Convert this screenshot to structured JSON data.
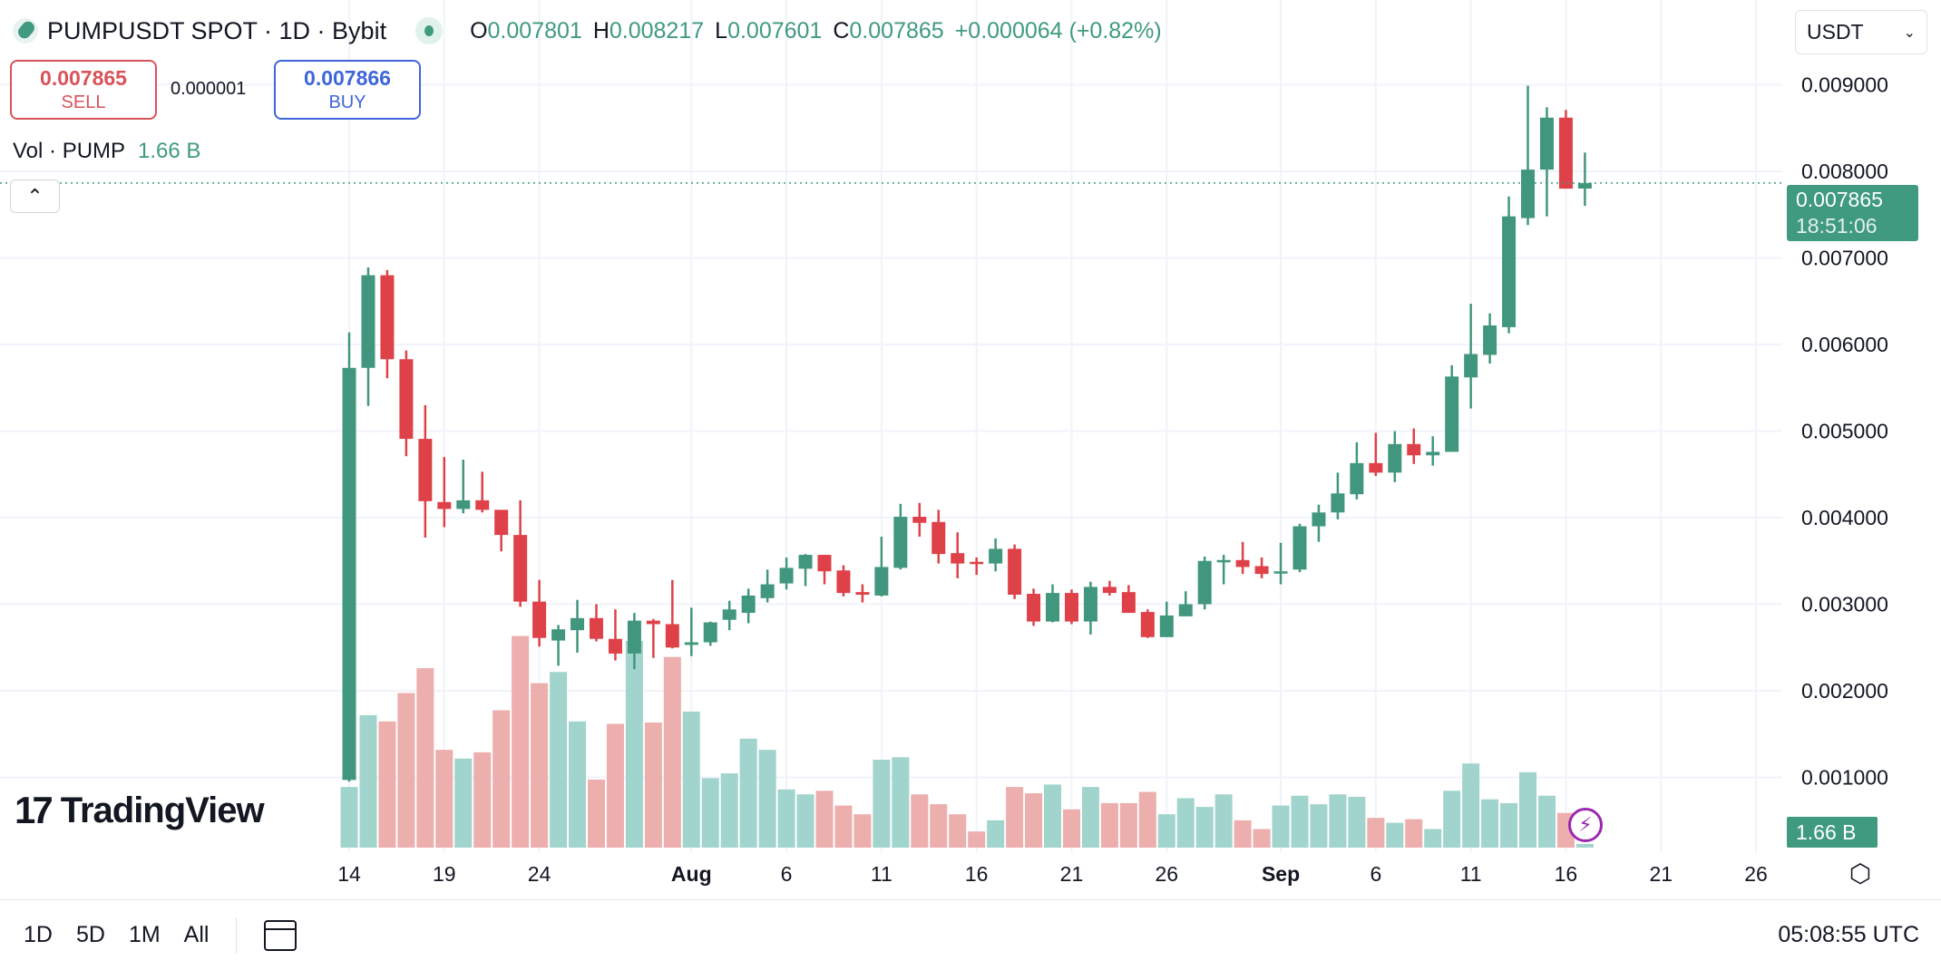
{
  "header": {
    "title": "PUMPUSDT SPOT · 1D · Bybit",
    "ohlc": [
      {
        "k": "O",
        "v": "0.007801"
      },
      {
        "k": "H",
        "v": "0.008217"
      },
      {
        "k": "L",
        "v": "0.007601"
      },
      {
        "k": "C",
        "v": "0.007865"
      }
    ],
    "change": "+0.000064 (+0.82%)"
  },
  "trade": {
    "sell_price": "0.007865",
    "sell_label": "SELL",
    "spread": "0.000001",
    "buy_price": "0.007866",
    "buy_label": "BUY"
  },
  "volume_legend": {
    "label": "Vol · PUMP",
    "value": "1.66 B"
  },
  "currency": "USDT",
  "price_badge": {
    "price": "0.007865",
    "countdown": "18:51:06"
  },
  "volume_badge": "1.66 B",
  "logo": "TradingView",
  "bottom": {
    "ranges": [
      "1D",
      "5D",
      "1M",
      "All"
    ],
    "clock": "05:08:55 UTC"
  },
  "colors": {
    "up": "#41977e",
    "down": "#df4149",
    "vol_up": "#a1d4cc",
    "vol_down": "#edaeae",
    "grid": "#f0f3fa"
  },
  "icons": {
    "symbol": "pump-logo-icon",
    "live": "market-open-dot-icon",
    "collapse": "chevron-up-icon",
    "calendar": "calendar-goto-icon",
    "settings": "settings-gear-icon",
    "alert": "lightning-icon"
  },
  "chart_data": {
    "type": "candlestick",
    "ylim": [
      0,
      0.0095
    ],
    "y_ticks": [
      "0.001000",
      "0.002000",
      "0.003000",
      "0.004000",
      "0.005000",
      "0.006000",
      "0.007000",
      "0.008000",
      "0.009000"
    ],
    "x_ticks": [
      {
        "label": "14",
        "date": "Jul 14"
      },
      {
        "label": "19",
        "date": "Jul 19"
      },
      {
        "label": "24",
        "date": "Jul 24"
      },
      {
        "label": "Aug",
        "date": "Aug 1",
        "bold": true
      },
      {
        "label": "6",
        "date": "Aug 6"
      },
      {
        "label": "11",
        "date": "Aug 11"
      },
      {
        "label": "16",
        "date": "Aug 16"
      },
      {
        "label": "21",
        "date": "Aug 21"
      },
      {
        "label": "26",
        "date": "Aug 26"
      },
      {
        "label": "Sep",
        "date": "Sep 1",
        "bold": true
      },
      {
        "label": "6",
        "date": "Sep 6"
      },
      {
        "label": "11",
        "date": "Sep 11"
      },
      {
        "label": "16",
        "date": "Sep 16"
      },
      {
        "label": "21",
        "date": "Sep 21"
      },
      {
        "label": "26",
        "date": "Sep 26"
      }
    ],
    "last_price": 0.007865,
    "grid": true,
    "volume_unit": "B",
    "candles_fields": [
      "date",
      "open",
      "high",
      "low",
      "close",
      "volume"
    ],
    "candles": [
      [
        "Jul 14",
        0.00097,
        0.00614,
        0.00095,
        0.00573,
        27.1
      ],
      [
        "Jul 15",
        0.00573,
        0.00689,
        0.00529,
        0.0068,
        59.2
      ],
      [
        "Jul 16",
        0.0068,
        0.00686,
        0.00561,
        0.00583,
        56.4
      ],
      [
        "Jul 17",
        0.00583,
        0.00593,
        0.00471,
        0.00491,
        69.1
      ],
      [
        "Jul 18",
        0.00491,
        0.0053,
        0.00377,
        0.00419,
        80.2
      ],
      [
        "Jul 19",
        0.00418,
        0.0047,
        0.00389,
        0.0041,
        43.7
      ],
      [
        "Jul 20",
        0.0041,
        0.00467,
        0.00405,
        0.0042,
        39.8
      ],
      [
        "Jul 21",
        0.0042,
        0.00453,
        0.00406,
        0.00409,
        42.6
      ],
      [
        "Jul 22",
        0.00409,
        0.00409,
        0.00361,
        0.0038,
        61.4
      ],
      [
        "Jul 23",
        0.0038,
        0.0042,
        0.00297,
        0.00303,
        94.6
      ],
      [
        "Jul 24",
        0.00303,
        0.00328,
        0.00251,
        0.00261,
        73.5
      ],
      [
        "Jul 25",
        0.00258,
        0.00276,
        0.00229,
        0.00271,
        78.5
      ],
      [
        "Jul 26",
        0.0027,
        0.00305,
        0.00244,
        0.00284,
        56.4
      ],
      [
        "Jul 27",
        0.00284,
        0.003,
        0.00257,
        0.0026,
        30.4
      ],
      [
        "Jul 28",
        0.0026,
        0.00294,
        0.00235,
        0.00243,
        55.3
      ],
      [
        "Jul 29",
        0.00243,
        0.0029,
        0.00225,
        0.00281,
        92.4
      ],
      [
        "Jul 30",
        0.00281,
        0.00283,
        0.00238,
        0.00277,
        55.9
      ],
      [
        "Jul 31",
        0.00277,
        0.00328,
        0.00249,
        0.0025,
        85.2
      ],
      [
        "Aug 1",
        0.00253,
        0.00296,
        0.0024,
        0.00256,
        60.8
      ],
      [
        "Aug 2",
        0.00256,
        0.0028,
        0.00252,
        0.00279,
        31.0
      ],
      [
        "Aug 3",
        0.00282,
        0.00304,
        0.0027,
        0.00294,
        33.2
      ],
      [
        "Aug 4",
        0.0029,
        0.00318,
        0.00278,
        0.0031,
        48.7
      ],
      [
        "Aug 5",
        0.00307,
        0.0034,
        0.00302,
        0.00323,
        43.7
      ],
      [
        "Aug 6",
        0.00324,
        0.00354,
        0.00317,
        0.00342,
        26.0
      ],
      [
        "Aug 7",
        0.00341,
        0.00358,
        0.00321,
        0.00357,
        23.8
      ],
      [
        "Aug 8",
        0.00357,
        0.00357,
        0.00323,
        0.00338,
        25.4
      ],
      [
        "Aug 9",
        0.00339,
        0.00345,
        0.00309,
        0.00313,
        18.8
      ],
      [
        "Aug 10",
        0.00314,
        0.00323,
        0.00302,
        0.00311,
        14.9
      ],
      [
        "Aug 11",
        0.0031,
        0.00378,
        0.00309,
        0.00343,
        39.3
      ],
      [
        "Aug 12",
        0.00342,
        0.00416,
        0.0034,
        0.00401,
        40.4
      ],
      [
        "Aug 13",
        0.00401,
        0.00417,
        0.00378,
        0.00394,
        23.8
      ],
      [
        "Aug 14",
        0.00395,
        0.00409,
        0.00347,
        0.00358,
        19.4
      ],
      [
        "Aug 15",
        0.00359,
        0.00383,
        0.0033,
        0.00347,
        14.9
      ],
      [
        "Aug 16",
        0.00349,
        0.00354,
        0.00334,
        0.00347,
        7.2
      ],
      [
        "Aug 17",
        0.00347,
        0.00376,
        0.00338,
        0.00364,
        12.2
      ],
      [
        "Aug 18",
        0.00364,
        0.00369,
        0.00306,
        0.00311,
        27.1
      ],
      [
        "Aug 19",
        0.00312,
        0.00318,
        0.00275,
        0.0028,
        24.3
      ],
      [
        "Aug 20",
        0.0028,
        0.00323,
        0.00279,
        0.00313,
        28.2
      ],
      [
        "Aug 21",
        0.00313,
        0.00317,
        0.00277,
        0.0028,
        17.1
      ],
      [
        "Aug 22",
        0.0028,
        0.00326,
        0.00265,
        0.0032,
        27.1
      ],
      [
        "Aug 23",
        0.0032,
        0.00327,
        0.0031,
        0.00313,
        19.9
      ],
      [
        "Aug 24",
        0.00314,
        0.00322,
        0.0029,
        0.0029,
        19.9
      ],
      [
        "Aug 25",
        0.00291,
        0.00294,
        0.00261,
        0.00262,
        24.9
      ],
      [
        "Aug 26",
        0.00262,
        0.00303,
        0.00262,
        0.00287,
        14.9
      ],
      [
        "Aug 27",
        0.00286,
        0.00315,
        0.00286,
        0.003,
        22.1
      ],
      [
        "Aug 28",
        0.003,
        0.00355,
        0.00294,
        0.0035,
        18.2
      ],
      [
        "Aug 29",
        0.0035,
        0.00357,
        0.00323,
        0.00351,
        23.8
      ],
      [
        "Aug 30",
        0.00351,
        0.00372,
        0.00335,
        0.00343,
        12.2
      ],
      [
        "Aug 31",
        0.00344,
        0.00354,
        0.0033,
        0.00335,
        8.3
      ],
      [
        "Sep 1",
        0.00337,
        0.00371,
        0.00323,
        0.00338,
        18.8
      ],
      [
        "Sep 2",
        0.0034,
        0.00393,
        0.00337,
        0.0039,
        23.2
      ],
      [
        "Sep 3",
        0.0039,
        0.00415,
        0.00372,
        0.00406,
        19.4
      ],
      [
        "Sep 4",
        0.00406,
        0.00452,
        0.00398,
        0.00428,
        23.8
      ],
      [
        "Sep 5",
        0.00427,
        0.00487,
        0.00421,
        0.00463,
        22.7
      ],
      [
        "Sep 6",
        0.00463,
        0.00498,
        0.00448,
        0.00452,
        13.3
      ],
      [
        "Sep 7",
        0.00452,
        0.005,
        0.00441,
        0.00485,
        11.1
      ],
      [
        "Sep 8",
        0.00485,
        0.00503,
        0.00462,
        0.00472,
        12.7
      ],
      [
        "Sep 9",
        0.00472,
        0.00494,
        0.0046,
        0.00476,
        8.3
      ],
      [
        "Sep 10",
        0.00476,
        0.00576,
        0.00476,
        0.00563,
        25.4
      ],
      [
        "Sep 11",
        0.00562,
        0.00647,
        0.00526,
        0.00589,
        37.6
      ],
      [
        "Sep 12",
        0.00588,
        0.00636,
        0.00578,
        0.00622,
        21.6
      ],
      [
        "Sep 13",
        0.0062,
        0.00771,
        0.00613,
        0.00748,
        19.9
      ],
      [
        "Sep 14",
        0.00746,
        0.00899,
        0.00738,
        0.00802,
        33.7
      ],
      [
        "Sep 15",
        0.00802,
        0.00874,
        0.00748,
        0.00862,
        23.2
      ],
      [
        "Sep 16",
        0.00862,
        0.00871,
        0.0078,
        0.0078,
        15.5
      ],
      [
        "Sep 17",
        0.007801,
        0.008217,
        0.007601,
        0.007865,
        1.66
      ]
    ]
  }
}
